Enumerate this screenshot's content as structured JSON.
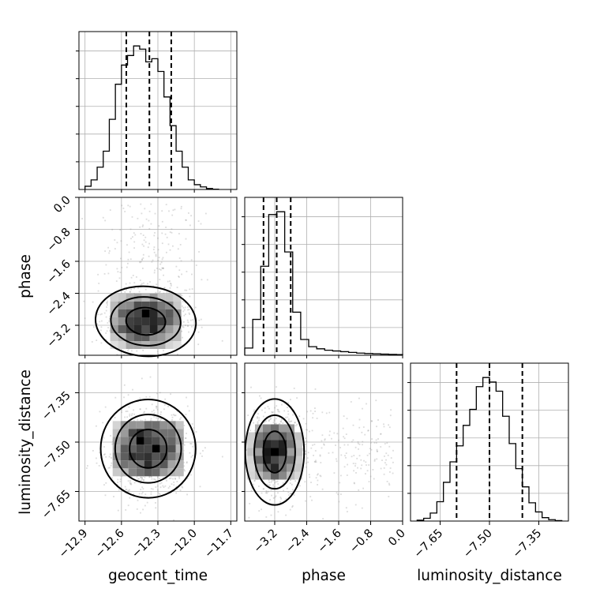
{
  "chart_data": {
    "type": "corner",
    "parameters": [
      "geocent_time",
      "phase",
      "luminosity_distance"
    ],
    "axes": {
      "geocent_time": {
        "label": "geocent_time",
        "range": [
          -12.95,
          -11.65
        ],
        "ticks": [
          -12.9,
          -12.6,
          -12.3,
          -12.0,
          -11.7
        ],
        "tick_labels": [
          "−12.9",
          "−12.6",
          "−12.3",
          "−12.0",
          "−11.7"
        ]
      },
      "phase": {
        "label": "phase",
        "range": [
          -3.95,
          0.0
        ],
        "ticks": [
          -3.2,
          -2.4,
          -1.6,
          -0.8,
          0.0
        ],
        "tick_labels": [
          "−3.2",
          "−2.4",
          "−1.6",
          "−0.8",
          "0.0"
        ],
        "y_ticks": [
          0.0,
          -0.8,
          -1.6,
          -2.4,
          -3.2
        ],
        "y_tick_labels": [
          "0.0",
          "−0.8",
          "−1.6",
          "−2.4",
          "−3.2"
        ]
      },
      "luminosity_distance": {
        "label": "luminosity_distance",
        "range": [
          -7.74,
          -7.26
        ],
        "ticks": [
          -7.65,
          -7.5,
          -7.35
        ],
        "tick_labels": [
          "−7.65",
          "−7.50",
          "−7.35"
        ],
        "y_ticks": [
          -7.35,
          -7.5,
          -7.65
        ],
        "y_tick_labels": [
          "−7.35",
          "−7.50",
          "−7.65"
        ]
      }
    },
    "histograms": [
      {
        "parameter": "geocent_time",
        "bin_edges": [
          -12.9,
          -12.85,
          -12.8,
          -12.75,
          -12.7,
          -12.65,
          -12.6,
          -12.55,
          -12.5,
          -12.45,
          -12.4,
          -12.35,
          -12.3,
          -12.25,
          -12.2,
          -12.15,
          -12.1,
          -12.05,
          -12.0,
          -11.95,
          -11.9,
          -11.85,
          -11.8
        ],
        "counts": [
          1,
          3,
          7,
          12,
          22,
          33,
          39,
          42,
          45,
          44,
          40,
          41,
          37,
          29,
          20,
          12,
          7,
          3,
          1.5,
          0.8,
          0.3,
          0.1
        ],
        "quantiles": [
          -12.56,
          -12.37,
          -12.19
        ]
      },
      {
        "parameter": "phase",
        "bin_edges": [
          -3.95,
          -3.75,
          -3.55,
          -3.35,
          -3.15,
          -2.95,
          -2.75,
          -2.55,
          -2.35,
          -2.15,
          -1.95,
          -1.75,
          -1.55,
          -1.35,
          -1.15,
          -0.95,
          -0.75,
          -0.55,
          -0.35,
          -0.15,
          0.0
        ],
        "counts": [
          5,
          25,
          62,
          98,
          100,
          72,
          30,
          11,
          6,
          4.5,
          3.5,
          3,
          2.5,
          2,
          1.5,
          1.2,
          1,
          0.8,
          0.6,
          0.5
        ],
        "quantiles": [
          -3.48,
          -3.15,
          -2.8
        ]
      },
      {
        "parameter": "luminosity_distance",
        "bin_edges": [
          -7.72,
          -7.7,
          -7.68,
          -7.66,
          -7.64,
          -7.62,
          -7.6,
          -7.58,
          -7.56,
          -7.54,
          -7.52,
          -7.5,
          -7.48,
          -7.46,
          -7.44,
          -7.42,
          -7.4,
          -7.38,
          -7.36,
          -7.34,
          -7.32,
          -7.3,
          -7.28
        ],
        "counts": [
          0.4,
          1.2,
          3.5,
          8.5,
          17,
          26,
          33,
          42,
          49,
          59,
          63,
          61,
          57,
          46,
          34,
          23,
          15,
          8,
          4,
          1.5,
          0.6,
          0.2
        ],
        "quantiles": [
          -7.6,
          -7.5,
          -7.4
        ]
      }
    ],
    "pairs": [
      {
        "x": "geocent_time",
        "y": "phase",
        "center": [
          -12.4,
          -3.1
        ],
        "contour_levels": 3
      },
      {
        "x": "geocent_time",
        "y": "luminosity_distance",
        "center": [
          -12.38,
          -7.52
        ],
        "contour_levels": 3
      },
      {
        "x": "phase",
        "y": "luminosity_distance",
        "center": [
          -3.2,
          -7.53
        ],
        "contour_levels": 3
      }
    ],
    "grid": true
  }
}
